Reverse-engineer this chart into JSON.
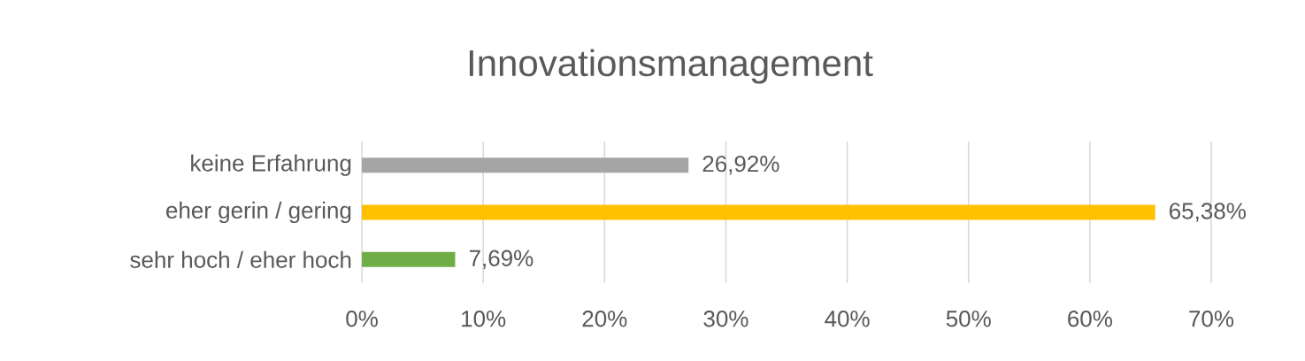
{
  "chart_data": {
    "type": "bar",
    "orientation": "horizontal",
    "title": "Innovationsmanagement",
    "categories": [
      "keine Erfahrung",
      "eher gerin / gering",
      "sehr hoch / eher hoch"
    ],
    "values": [
      26.92,
      65.38,
      7.69
    ],
    "colors": [
      "#a5a5a5",
      "#ffc000",
      "#70ad47"
    ],
    "value_labels": [
      "26,92%",
      "65,38%",
      "7,69%"
    ],
    "xlim": [
      0,
      70
    ],
    "xticks": [
      {
        "value": 0,
        "label": "0%"
      },
      {
        "value": 10,
        "label": "10%"
      },
      {
        "value": 20,
        "label": "20%"
      },
      {
        "value": 30,
        "label": "30%"
      },
      {
        "value": 40,
        "label": "40%"
      },
      {
        "value": 50,
        "label": "50%"
      },
      {
        "value": 60,
        "label": "60%"
      },
      {
        "value": 70,
        "label": "70%"
      }
    ],
    "grid": "x"
  }
}
